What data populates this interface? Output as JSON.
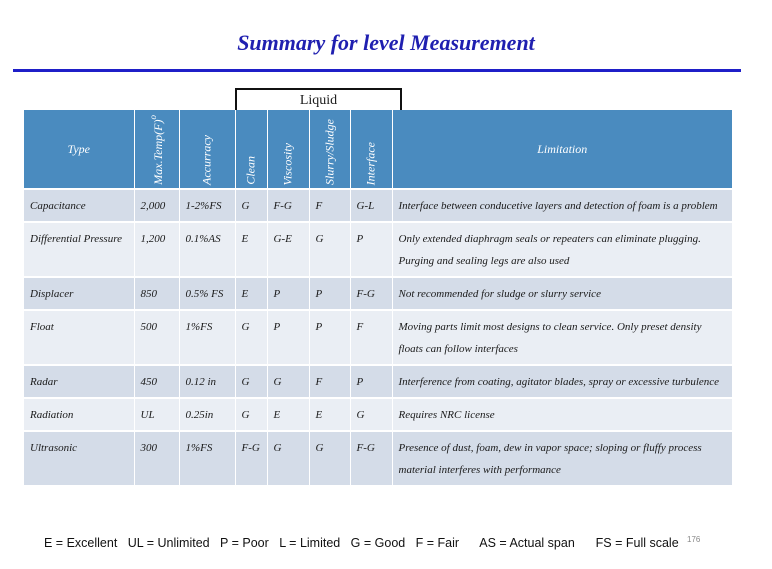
{
  "title": "Summary for level Measurement",
  "liquid_label": "Liquid",
  "headers": {
    "type": "Type",
    "maxtemp": "Max.Temp(F)",
    "maxtemp_sup": "o",
    "accuracy": "Accurracy",
    "clean": "Clean",
    "viscosity": "Viscosity",
    "slurry": "Slurry/Sludge",
    "interface": "Interface",
    "limitation": "Limitation"
  },
  "rows": [
    {
      "type": "Capacitance",
      "maxtemp": "2,000",
      "accuracy": "1-2%FS",
      "clean": "G",
      "viscosity": "F-G",
      "slurry": "F",
      "interface": "G-L",
      "limitation": "Interface between conducetive layers and detection of foam is a problem"
    },
    {
      "type": "Differential Pressure",
      "maxtemp": "1,200",
      "accuracy": "0.1%AS",
      "clean": "E",
      "viscosity": "G-E",
      "slurry": "G",
      "interface": "P",
      "limitation": "Only extended diaphragm seals or repeaters can eliminate plugging. Purging and sealing legs are also used"
    },
    {
      "type": "Displacer",
      "maxtemp": "850",
      "accuracy": "0.5% FS",
      "clean": "E",
      "viscosity": "P",
      "slurry": "P",
      "interface": "F-G",
      "limitation": "Not recommended for sludge or slurry service"
    },
    {
      "type": "Float",
      "maxtemp": "500",
      "accuracy": "1%FS",
      "clean": "G",
      "viscosity": "P",
      "slurry": "P",
      "interface": "F",
      "limitation": "Moving parts limit most designs to clean service. Only preset density floats can follow interfaces"
    },
    {
      "type": "Radar",
      "maxtemp": "450",
      "accuracy": "0.12 in",
      "clean": "G",
      "viscosity": "G",
      "slurry": "F",
      "interface": "P",
      "limitation": "Interference from coating, agitator blades, spray or excessive turbulence"
    },
    {
      "type": "Radiation",
      "maxtemp": "UL",
      "accuracy": "0.25in",
      "clean": "G",
      "viscosity": "E",
      "slurry": "E",
      "interface": "G",
      "limitation": "Requires NRC license"
    },
    {
      "type": "Ultrasonic",
      "maxtemp": "300",
      "accuracy": "1%FS",
      "clean": "F-G",
      "viscosity": "G",
      "slurry": "G",
      "interface": "F-G",
      "limitation": "Presence of dust, foam, dew in vapor space; sloping or fluffy process material interferes with performance"
    }
  ],
  "legend": [
    "E = Excellent",
    "UL = Unlimited",
    "P = Poor",
    "L =  Limited",
    "G =  Good",
    "F =  Fair",
    "AS =  Actual span",
    "FS =  Full scale"
  ],
  "slide_number": "176",
  "colors": {
    "title": "#1f1fb0",
    "rule": "#1f1fc8",
    "header_bg": "#4a8bbf",
    "row_shade": "#d4dce8",
    "row_plain": "#eaeef4"
  }
}
